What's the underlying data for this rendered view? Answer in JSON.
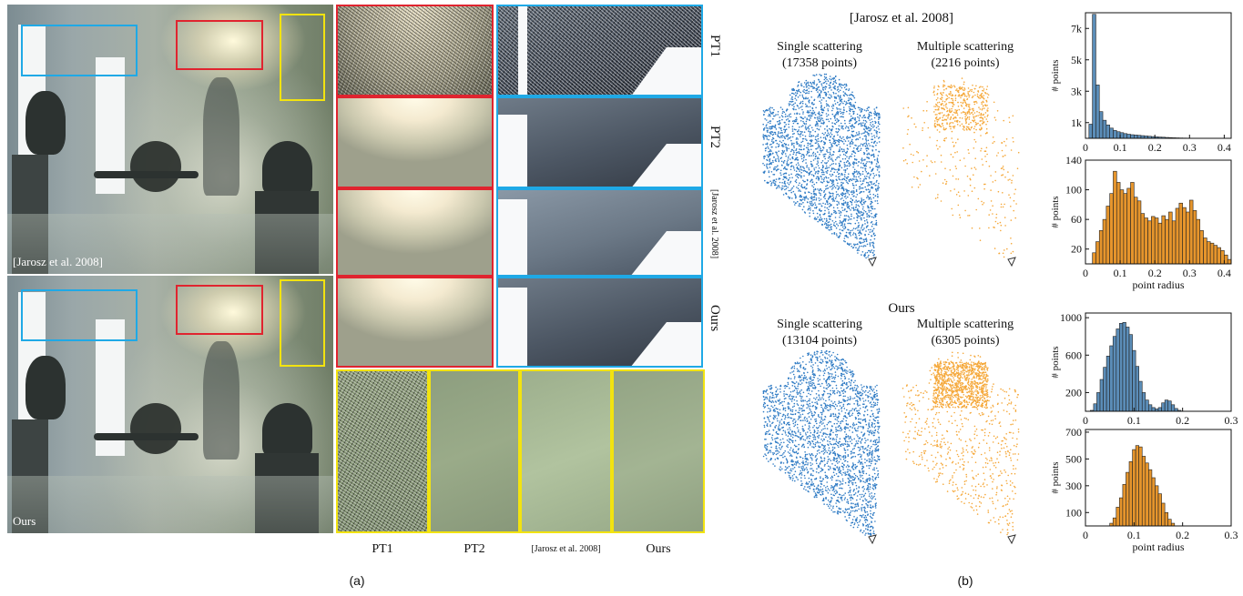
{
  "colors": {
    "red": "#e0242f",
    "blue": "#1fa9e6",
    "yellow": "#f2e310",
    "single_scatter": "#2f7bc4",
    "multi_scatter": "#f5a83a",
    "hist_blue": "#5b8db8",
    "hist_orange": "#e6952c"
  },
  "panel_a": {
    "render_top_caption": "[Jarosz et al. 2008]",
    "render_bottom_caption": "Ours",
    "crop_row_labels": [
      "PT1",
      "PT2",
      "[Jarosz et al. 2008]",
      "Ours"
    ],
    "bottom_labels": [
      "PT1",
      "PT2",
      "[Jarosz et al. 2008]",
      "Ours"
    ],
    "figure_label": "(a)"
  },
  "panel_b": {
    "title_top": "[Jarosz et al. 2008]",
    "title_bottom": "Ours",
    "top_single": {
      "line1": "Single scattering",
      "line2": "(17358 points)"
    },
    "top_multiple": {
      "line1": "Multiple scattering",
      "line2": "(2216  points)"
    },
    "bottom_single": {
      "line1": "Single scattering",
      "line2": "(13104 points)"
    },
    "bottom_multiple": {
      "line1": "Multiple scattering",
      "line2": "(6305 points)"
    },
    "figure_label": "(b)"
  },
  "chart_data": [
    {
      "type": "bar",
      "name_hint": "top-single-histogram",
      "ylabel": "# points",
      "xlabel": "",
      "xlim": [
        0,
        0.42
      ],
      "ylim": [
        0,
        8000
      ],
      "xticks": [
        "0",
        "0.1",
        "0.2",
        "0.3",
        "0.4"
      ],
      "yticks": [
        "1k",
        "3k",
        "5k",
        "7k"
      ],
      "ytick_values": [
        1000,
        3000,
        5000,
        7000
      ],
      "bin_width": 0.01,
      "bin_start": 0.01,
      "values": [
        900,
        7900,
        3400,
        1700,
        1150,
        850,
        650,
        500,
        420,
        360,
        300,
        260,
        230,
        210,
        190,
        170,
        150,
        130,
        110,
        95,
        80,
        70,
        55,
        45,
        35,
        28,
        22,
        18,
        14,
        10,
        8,
        6,
        5,
        4
      ]
    },
    {
      "type": "bar",
      "name_hint": "top-multiple-histogram",
      "ylabel": "# points",
      "xlabel": "point radius",
      "xlim": [
        0,
        0.42
      ],
      "ylim": [
        0,
        140
      ],
      "xticks": [
        "0",
        "0.1",
        "0.2",
        "0.3",
        "0.4"
      ],
      "yticks": [
        "20",
        "60",
        "100",
        "140"
      ],
      "ytick_values": [
        20,
        60,
        100,
        140
      ],
      "bin_width": 0.01,
      "bin_start": 0.02,
      "values": [
        15,
        30,
        45,
        60,
        78,
        95,
        125,
        110,
        100,
        95,
        102,
        110,
        90,
        85,
        68,
        62,
        58,
        64,
        62,
        55,
        65,
        60,
        70,
        58,
        75,
        82,
        76,
        70,
        86,
        72,
        60,
        45,
        35,
        30,
        28,
        25,
        22,
        18,
        12,
        6
      ]
    },
    {
      "type": "bar",
      "name_hint": "bottom-single-histogram",
      "ylabel": "# points",
      "xlabel": "",
      "xlim": [
        0,
        0.3
      ],
      "ylim": [
        0,
        1050
      ],
      "xticks": [
        "0",
        "0.1",
        "0.2",
        "0.3"
      ],
      "yticks": [
        "200",
        "600",
        "1000"
      ],
      "ytick_values": [
        200,
        600,
        1000
      ],
      "bin_width": 0.00667,
      "bin_start": 0.01,
      "values": [
        10,
        80,
        200,
        340,
        470,
        590,
        700,
        800,
        880,
        940,
        950,
        900,
        820,
        650,
        480,
        320,
        200,
        120,
        70,
        40,
        25,
        40,
        90,
        120,
        110,
        70,
        30,
        10
      ]
    },
    {
      "type": "bar",
      "name_hint": "bottom-multiple-histogram",
      "ylabel": "# points",
      "xlabel": "point radius",
      "xlim": [
        0,
        0.3
      ],
      "ylim": [
        0,
        720
      ],
      "xticks": [
        "0",
        "0.1",
        "0.2",
        "0.3"
      ],
      "yticks": [
        "100",
        "300",
        "500",
        "700"
      ],
      "ytick_values": [
        100,
        300,
        500,
        700
      ],
      "bin_width": 0.00667,
      "bin_start": 0.05,
      "values": [
        20,
        60,
        140,
        210,
        310,
        400,
        480,
        570,
        600,
        590,
        520,
        470,
        420,
        360,
        300,
        240,
        170,
        100,
        50,
        20
      ]
    }
  ]
}
